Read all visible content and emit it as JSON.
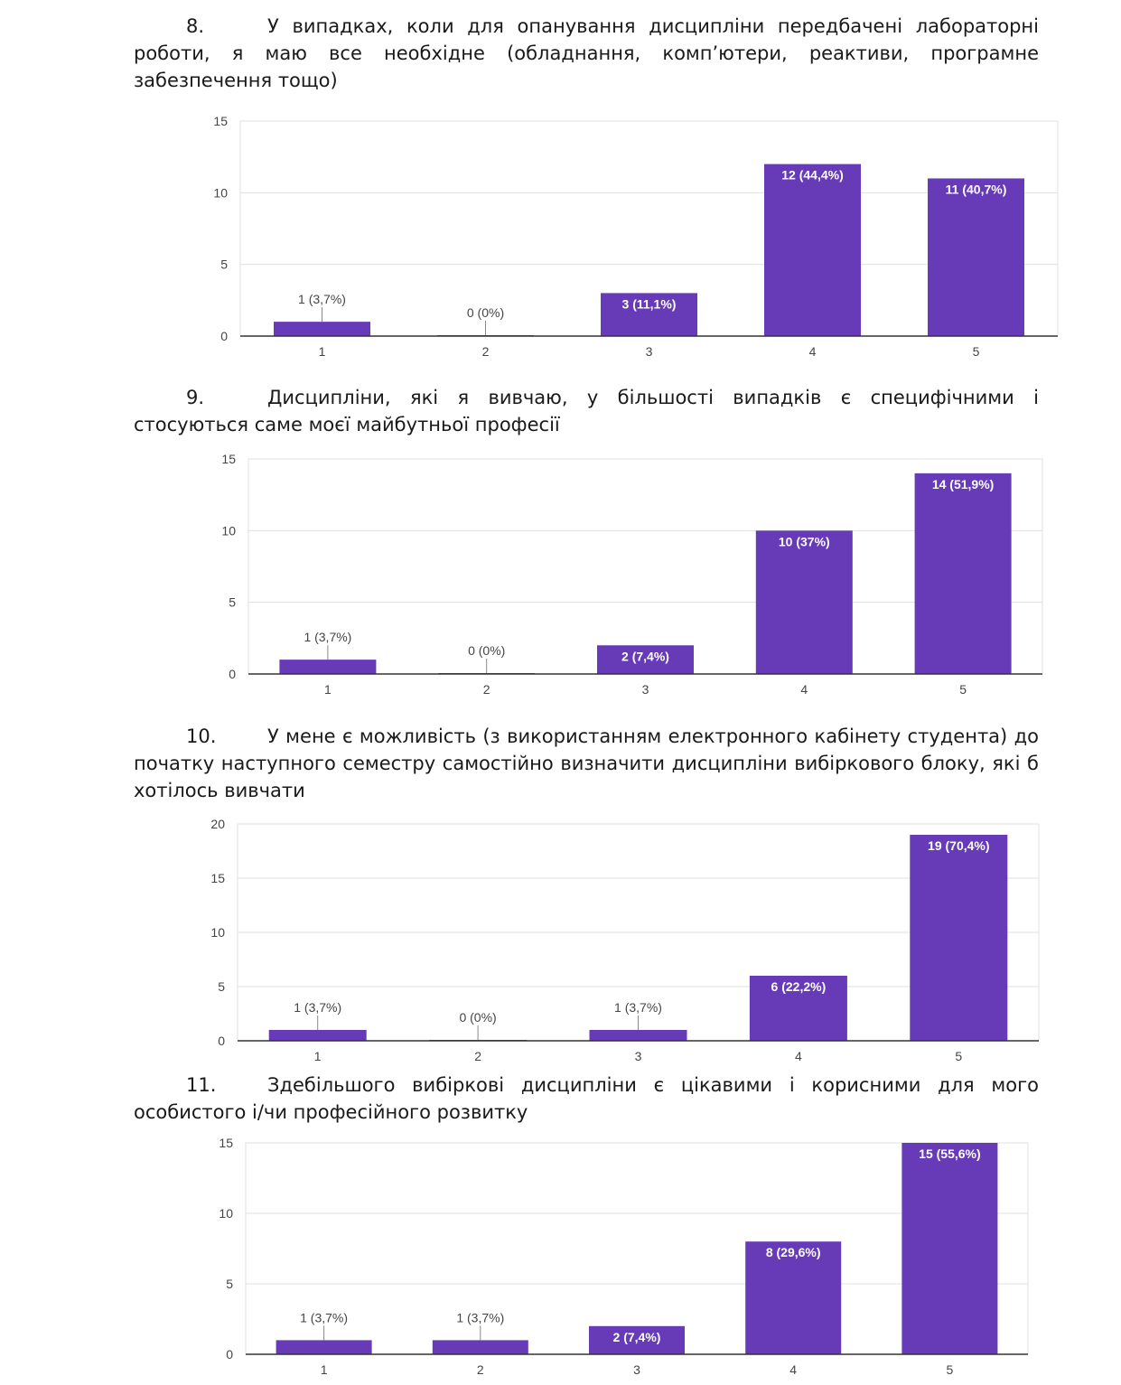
{
  "questions": [
    {
      "number": "8.",
      "text": "У випадках, коли для опанування дисципліни передбачені лабораторні роботи, я маю все необхідне (обладнання, комп’ютери, реактиви, програмне забезпечення тощо)"
    },
    {
      "number": "9.",
      "text": "Дисципліни, які я вивчаю, у більшості випадків є специфічними і стосуються саме моєї майбутньої професії"
    },
    {
      "number": "10.",
      "text": "У мене є можливість (з використанням електронного кабінету студента) до початку наступного семестру самостійно визначити дисципліни вибіркового блоку, які б хотілось вивчати"
    },
    {
      "number": "11.",
      "text": "Здебільшого вибіркові дисципліни є цікавими і корисними для мого особистого і/чи професійного розвитку"
    }
  ],
  "colors": {
    "bar": "#673AB7",
    "grid": "#e0e0e0",
    "axis": "#333333"
  },
  "chart_data": [
    {
      "type": "bar",
      "categories": [
        "1",
        "2",
        "3",
        "4",
        "5"
      ],
      "values": [
        1,
        0,
        3,
        12,
        11
      ],
      "data_labels": [
        "1 (3,7%)",
        "0 (0%)",
        "3 (11,1%)",
        "12 (44,4%)",
        "11 (40,7%)"
      ],
      "yticks": [
        "0",
        "5",
        "10",
        "15"
      ],
      "ylim": [
        0,
        15
      ],
      "grid": true
    },
    {
      "type": "bar",
      "categories": [
        "1",
        "2",
        "3",
        "4",
        "5"
      ],
      "values": [
        1,
        0,
        2,
        10,
        14
      ],
      "data_labels": [
        "1 (3,7%)",
        "0 (0%)",
        "2 (7,4%)",
        "10 (37%)",
        "14 (51,9%)"
      ],
      "yticks": [
        "0",
        "5",
        "10",
        "15"
      ],
      "ylim": [
        0,
        15
      ],
      "grid": true
    },
    {
      "type": "bar",
      "categories": [
        "1",
        "2",
        "3",
        "4",
        "5"
      ],
      "values": [
        1,
        0,
        1,
        6,
        19
      ],
      "data_labels": [
        "1 (3,7%)",
        "0 (0%)",
        "1 (3,7%)",
        "6 (22,2%)",
        "19 (70,4%)"
      ],
      "yticks": [
        "0",
        "5",
        "10",
        "15",
        "20"
      ],
      "ylim": [
        0,
        20
      ],
      "grid": true
    },
    {
      "type": "bar",
      "categories": [
        "1",
        "2",
        "3",
        "4",
        "5"
      ],
      "values": [
        1,
        1,
        2,
        8,
        15
      ],
      "data_labels": [
        "1 (3,7%)",
        "1 (3,7%)",
        "2 (7,4%)",
        "8 (29,6%)",
        "15 (55,6%)"
      ],
      "yticks": [
        "0",
        "5",
        "10",
        "15"
      ],
      "ylim": [
        0,
        15
      ],
      "grid": true
    }
  ]
}
